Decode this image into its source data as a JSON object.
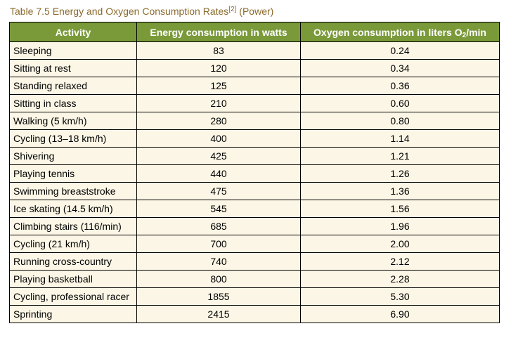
{
  "caption": {
    "text": "Table 7.5 Energy and Oxygen Consumption Rates",
    "ref": "[2]",
    "suffix": " (Power)"
  },
  "table": {
    "headers": {
      "activity": "Activity",
      "energy": "Energy consumption in watts",
      "oxygen_prefix": "Oxygen consumption in liters O",
      "oxygen_sub": "2",
      "oxygen_suffix": "/min"
    },
    "rows": [
      {
        "activity": "Sleeping",
        "energy": "83",
        "oxygen": "0.24"
      },
      {
        "activity": "Sitting at rest",
        "energy": "120",
        "oxygen": "0.34"
      },
      {
        "activity": "Standing relaxed",
        "energy": "125",
        "oxygen": "0.36"
      },
      {
        "activity": "Sitting in class",
        "energy": "210",
        "oxygen": "0.60"
      },
      {
        "activity": "Walking (5 km/h)",
        "energy": "280",
        "oxygen": "0.80"
      },
      {
        "activity": "Cycling (13–18 km/h)",
        "energy": "400",
        "oxygen": "1.14"
      },
      {
        "activity": "Shivering",
        "energy": "425",
        "oxygen": "1.21"
      },
      {
        "activity": "Playing tennis",
        "energy": "440",
        "oxygen": "1.26"
      },
      {
        "activity": "Swimming breaststroke",
        "energy": "475",
        "oxygen": "1.36"
      },
      {
        "activity": "Ice skating (14.5 km/h)",
        "energy": "545",
        "oxygen": "1.56"
      },
      {
        "activity": "Climbing stairs (116/min)",
        "energy": "685",
        "oxygen": "1.96"
      },
      {
        "activity": "Cycling (21 km/h)",
        "energy": "700",
        "oxygen": "2.00"
      },
      {
        "activity": "Running cross-country",
        "energy": "740",
        "oxygen": "2.12"
      },
      {
        "activity": "Playing basketball",
        "energy": "800",
        "oxygen": "2.28"
      },
      {
        "activity": "Cycling, professional racer",
        "energy": "1855",
        "oxygen": "5.30"
      },
      {
        "activity": "Sprinting",
        "energy": "2415",
        "oxygen": "6.90"
      }
    ]
  },
  "colors": {
    "header_bg": "#7a9a3a",
    "cell_bg": "#fbf6e6",
    "caption": "#8a6a2a"
  }
}
